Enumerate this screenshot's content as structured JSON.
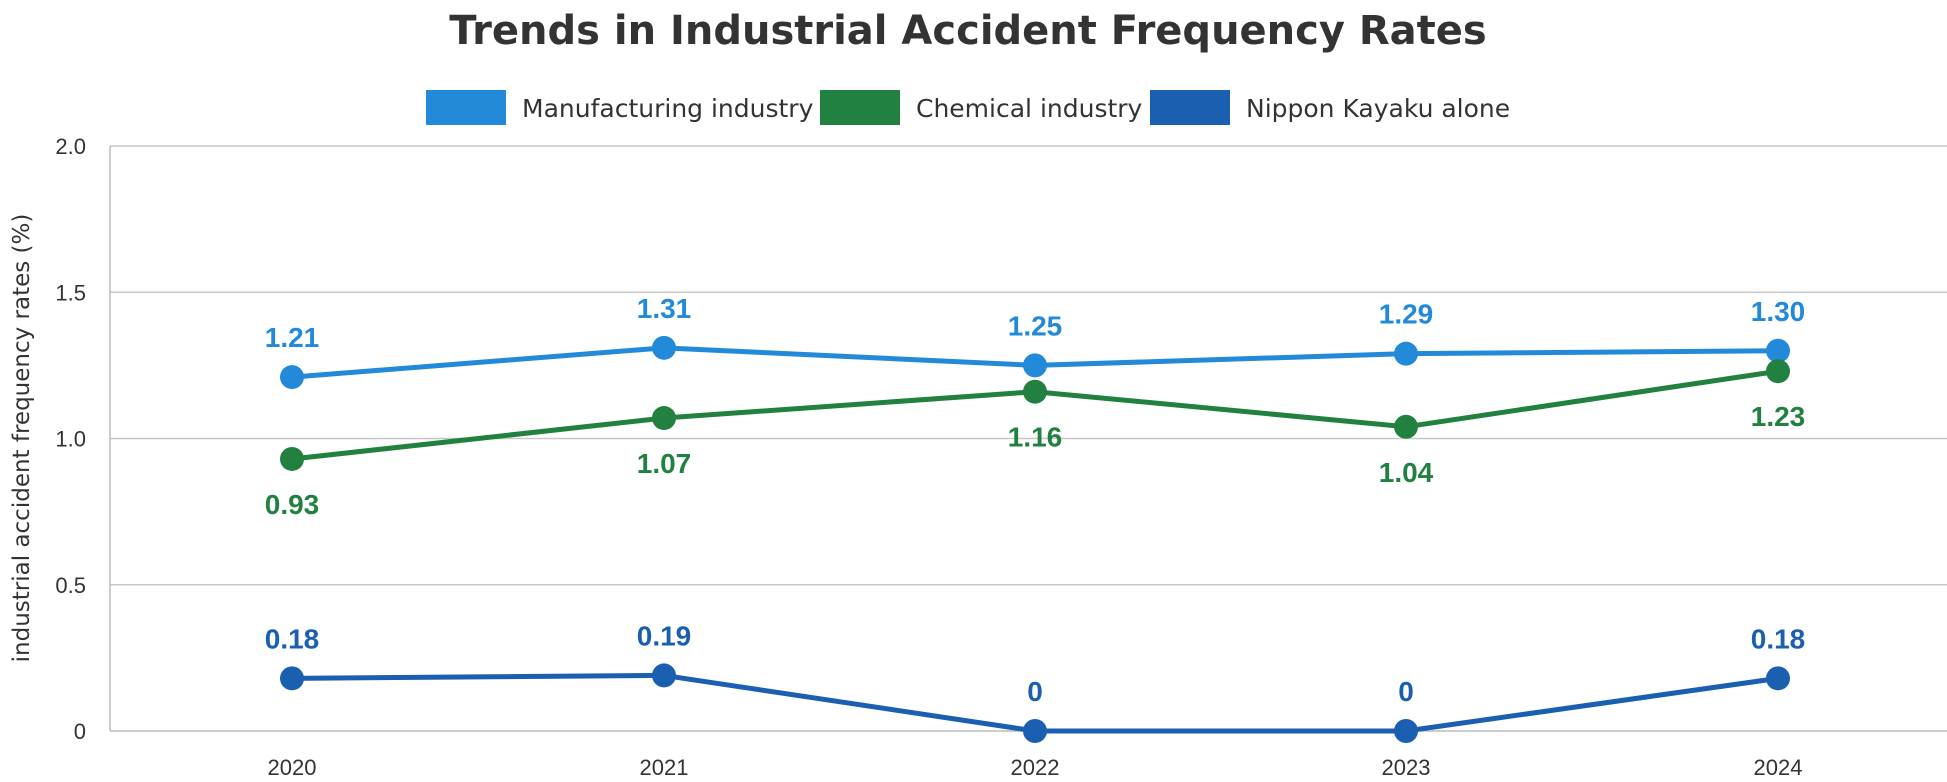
{
  "chart_data": {
    "type": "line",
    "title": "Trends in Industrial Accident Frequency Rates",
    "ylabel": "industrial accident frequency rates (%)",
    "xlabel": "",
    "categories": [
      "2020",
      "2021",
      "2022",
      "2023",
      "2024"
    ],
    "ylim": [
      0,
      2.0
    ],
    "yticks": [
      0,
      0.5,
      1.0,
      1.5,
      2.0
    ],
    "ytick_labels": [
      "0",
      "0.5",
      "1.0",
      "1.5",
      "2.0"
    ],
    "grid": true,
    "legend_position": "top-center",
    "series": [
      {
        "name": "Manufacturing  industry",
        "values": [
          1.21,
          1.31,
          1.25,
          1.29,
          1.3
        ],
        "labels": [
          "1.21",
          "1.31",
          "1.25",
          "1.29",
          "1.30"
        ],
        "label_position": "above",
        "color": "#2389d9"
      },
      {
        "name": "Chemical industry",
        "values": [
          0.93,
          1.07,
          1.16,
          1.04,
          1.23
        ],
        "labels": [
          "0.93",
          "1.07",
          "1.16",
          "1.04",
          "1.23"
        ],
        "label_position": "below",
        "color": "#228040"
      },
      {
        "name": "Nippon Kayaku alone",
        "values": [
          0.18,
          0.19,
          0,
          0,
          0.18
        ],
        "labels": [
          "0.18",
          "0.19",
          "0",
          "0",
          "0.18"
        ],
        "label_position": "above",
        "color": "#1a5fb0"
      }
    ]
  }
}
